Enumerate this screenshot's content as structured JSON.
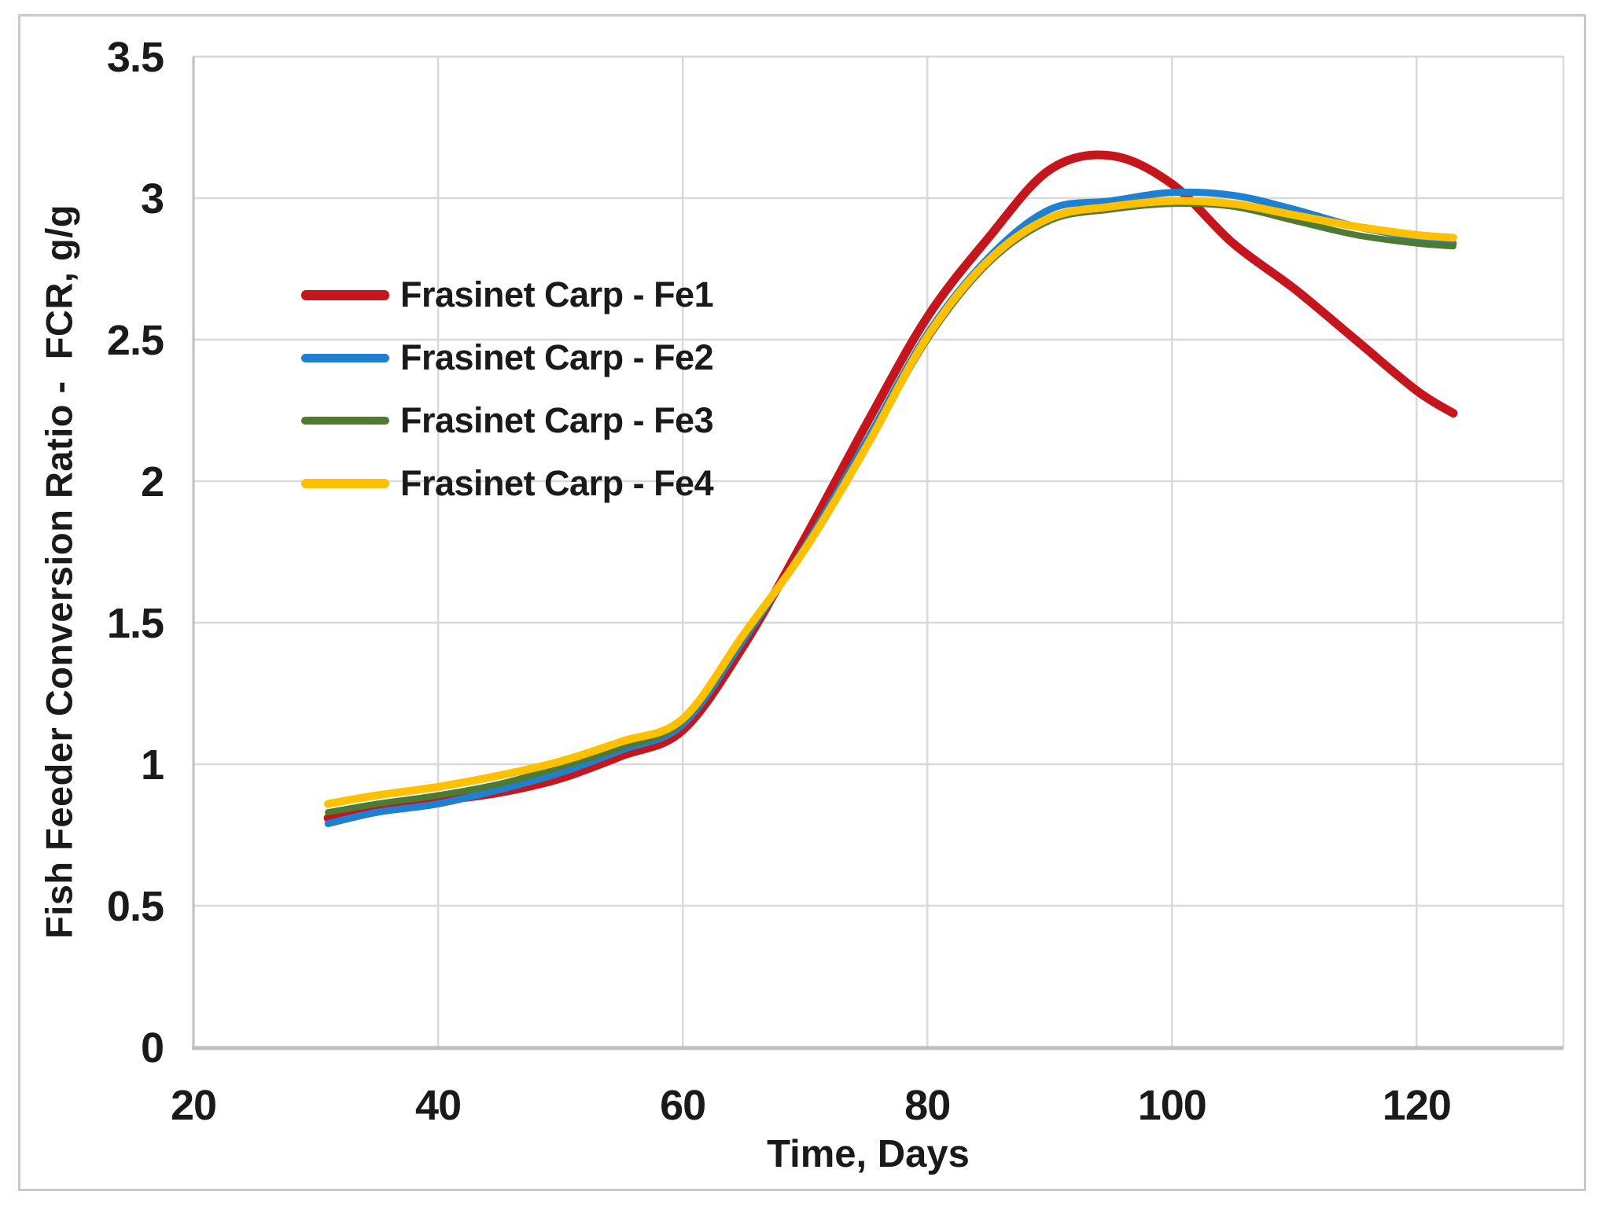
{
  "figure": {
    "background": "#FFFFFF",
    "border_color": "#C9C9C9"
  },
  "colors": {
    "gridline": "#D9D9D9",
    "axis_line": "#BFBFBF",
    "text": "#1A1A1A"
  },
  "chart_data": {
    "type": "line",
    "title": "",
    "xlabel": "Time, Days",
    "ylabel": "Fish Feeder Conversion Ratio -  FCR, g/g",
    "xlim": [
      20,
      132
    ],
    "ylim": [
      0,
      3.5
    ],
    "x_ticks": [
      20,
      40,
      60,
      80,
      100,
      120
    ],
    "y_ticks": [
      0,
      0.5,
      1,
      1.5,
      2,
      2.5,
      3,
      3.5
    ],
    "grid": true,
    "legend_position": "inside upper-left",
    "x": [
      31,
      35,
      40,
      45,
      50,
      55,
      60,
      65,
      70,
      75,
      80,
      85,
      90,
      95,
      100,
      105,
      110,
      115,
      120,
      123
    ],
    "series": [
      {
        "name": "Frasinet Carp - Fe1",
        "color": "#C4161C",
        "line_width": 11,
        "values": [
          0.81,
          0.84,
          0.87,
          0.9,
          0.95,
          1.03,
          1.12,
          1.42,
          1.8,
          2.2,
          2.58,
          2.86,
          3.1,
          3.15,
          3.05,
          2.84,
          2.68,
          2.5,
          2.32,
          2.24
        ]
      },
      {
        "name": "Frasinet Carp - Fe2",
        "color": "#1F80D2",
        "line_width": 9,
        "values": [
          0.79,
          0.83,
          0.86,
          0.91,
          0.97,
          1.05,
          1.14,
          1.44,
          1.77,
          2.14,
          2.52,
          2.79,
          2.96,
          2.99,
          3.02,
          3.01,
          2.96,
          2.9,
          2.86,
          2.84
        ]
      },
      {
        "name": "Frasinet Carp - Fe3",
        "color": "#4E7A33",
        "line_width": 8,
        "values": [
          0.83,
          0.86,
          0.89,
          0.93,
          0.99,
          1.06,
          1.15,
          1.45,
          1.76,
          2.12,
          2.5,
          2.77,
          2.92,
          2.96,
          2.98,
          2.97,
          2.92,
          2.87,
          2.84,
          2.83
        ]
      },
      {
        "name": "Frasinet Carp - Fe4",
        "color": "#FFC000",
        "line_width": 10,
        "values": [
          0.86,
          0.89,
          0.92,
          0.96,
          1.01,
          1.08,
          1.16,
          1.46,
          1.76,
          2.12,
          2.51,
          2.78,
          2.93,
          2.97,
          2.99,
          2.98,
          2.94,
          2.9,
          2.87,
          2.86
        ]
      }
    ]
  }
}
